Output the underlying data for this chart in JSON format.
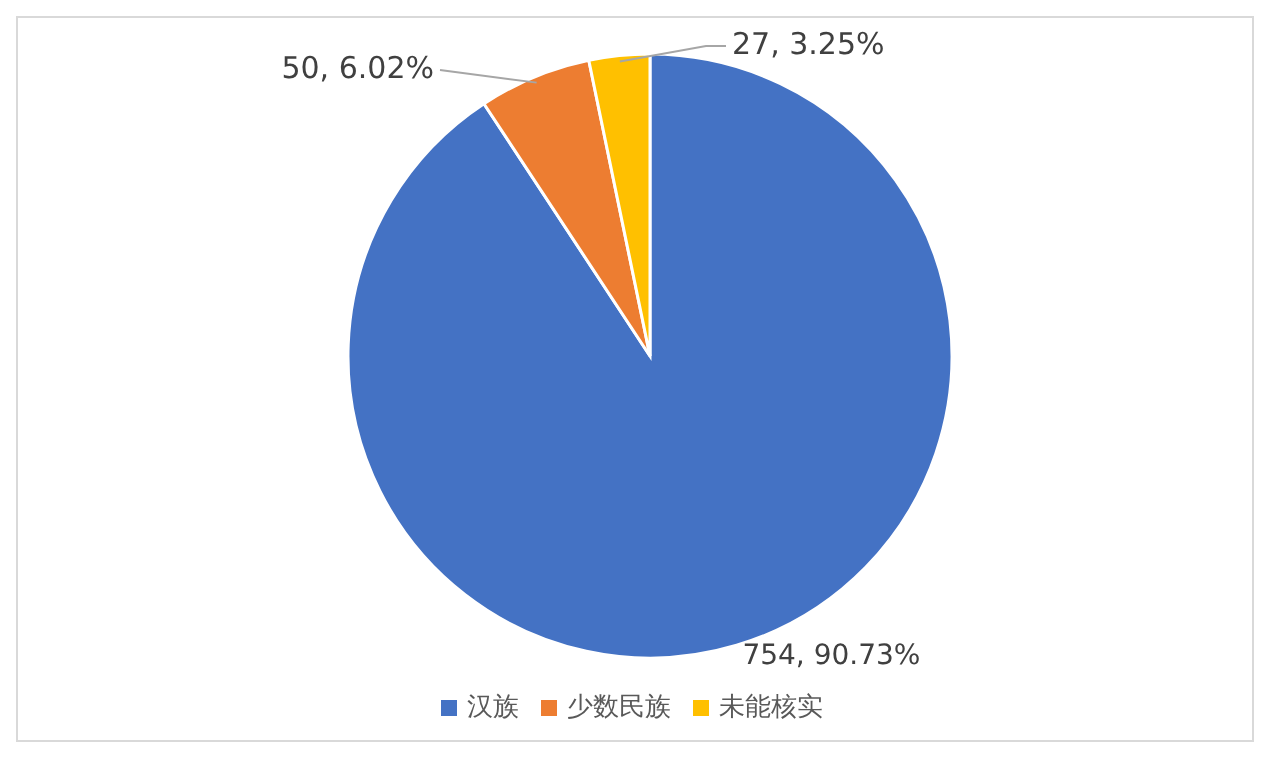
{
  "chart_data": {
    "type": "pie",
    "categories": [
      "汉族",
      "少数民族",
      "未能核实"
    ],
    "values": [
      754,
      50,
      27
    ],
    "colors": [
      "#4472c4",
      "#ed7d31",
      "#ffc000"
    ],
    "value_labels": [
      "754, 90.73%",
      "50, 6.02%",
      "27, 3.25%"
    ],
    "legend": "bottom"
  }
}
